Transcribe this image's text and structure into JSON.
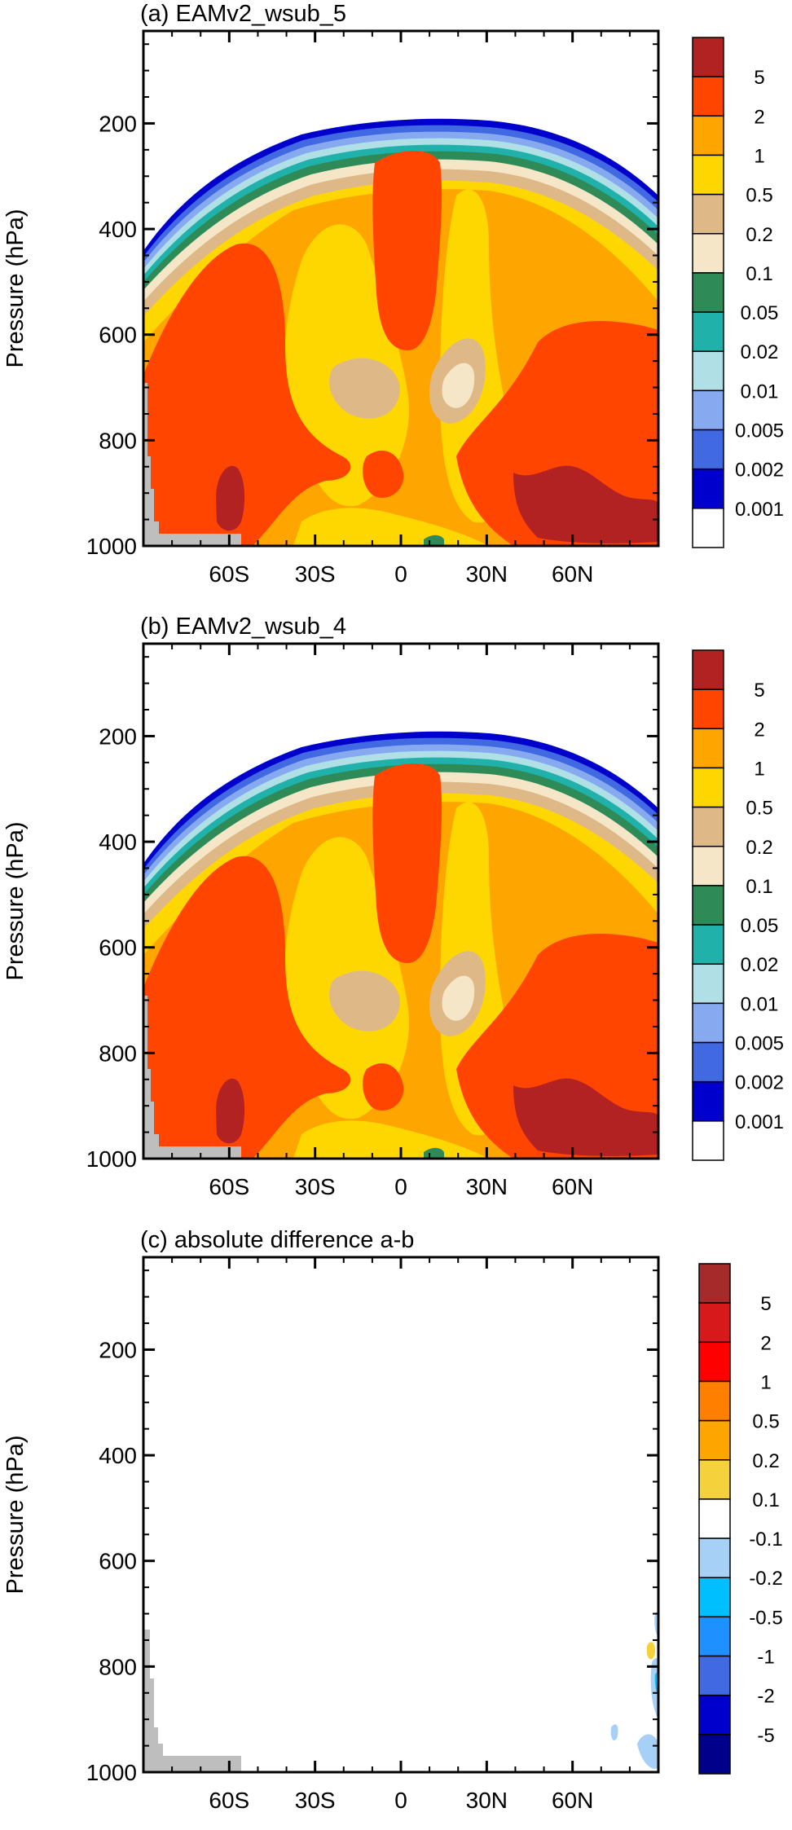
{
  "chart_data": [
    {
      "type": "heatmap",
      "title": "(a) EAMv2_wsub_5",
      "ylabel": "Pressure (hPa)",
      "xlabel": "",
      "x_ticks": [
        "60S",
        "30S",
        "0",
        "30N",
        "60N"
      ],
      "x_tick_values": [
        -60,
        -30,
        0,
        30,
        60
      ],
      "xlim": [
        -90,
        90
      ],
      "y_ticks": [
        "200",
        "400",
        "600",
        "800",
        "1000"
      ],
      "y_tick_values": [
        200,
        400,
        600,
        800,
        1000
      ],
      "ylim": [
        1000,
        25
      ],
      "colorbar": {
        "labels": [
          "5",
          "2",
          "1",
          "0.5",
          "0.2",
          "0.1",
          "0.05",
          "0.02",
          "0.01",
          "0.005",
          "0.002",
          "0.001"
        ],
        "colors": [
          "#b22222",
          "#ff4500",
          "#ffa500",
          "#ffd700",
          "#deb887",
          "#f5e6c8",
          "#2e8b57",
          "#20b2aa",
          "#b0e0e6",
          "#87a9f0",
          "#4169e1",
          "#0000cd",
          "#ffffff"
        ]
      },
      "land_mask_color": "#bebebe"
    },
    {
      "type": "heatmap",
      "title": "(b) EAMv2_wsub_4",
      "ylabel": "Pressure (hPa)",
      "xlabel": "",
      "x_ticks": [
        "60S",
        "30S",
        "0",
        "30N",
        "60N"
      ],
      "x_tick_values": [
        -60,
        -30,
        0,
        30,
        60
      ],
      "xlim": [
        -90,
        90
      ],
      "y_ticks": [
        "200",
        "400",
        "600",
        "800",
        "1000"
      ],
      "y_tick_values": [
        200,
        400,
        600,
        800,
        1000
      ],
      "ylim": [
        1000,
        25
      ],
      "colorbar": {
        "labels": [
          "5",
          "2",
          "1",
          "0.5",
          "0.2",
          "0.1",
          "0.05",
          "0.02",
          "0.01",
          "0.005",
          "0.002",
          "0.001"
        ],
        "colors": [
          "#b22222",
          "#ff4500",
          "#ffa500",
          "#ffd700",
          "#deb887",
          "#f5e6c8",
          "#2e8b57",
          "#20b2aa",
          "#b0e0e6",
          "#87a9f0",
          "#4169e1",
          "#0000cd",
          "#ffffff"
        ]
      },
      "land_mask_color": "#bebebe"
    },
    {
      "type": "heatmap",
      "title": "(c) absolute difference a-b",
      "ylabel": "Pressure (hPa)",
      "xlabel": "",
      "x_ticks": [
        "60S",
        "30S",
        "0",
        "30N",
        "60N"
      ],
      "x_tick_values": [
        -60,
        -30,
        0,
        30,
        60
      ],
      "xlim": [
        -90,
        90
      ],
      "y_ticks": [
        "200",
        "400",
        "600",
        "800",
        "1000"
      ],
      "y_tick_values": [
        200,
        400,
        600,
        800,
        1000
      ],
      "ylim": [
        1000,
        25
      ],
      "colorbar": {
        "labels": [
          "5",
          "2",
          "1",
          "0.5",
          "0.2",
          "0.1",
          "-0.1",
          "-0.2",
          "-0.5",
          "-1",
          "-2",
          "-5"
        ],
        "colors": [
          "#a52a2a",
          "#d7191c",
          "#ff0000",
          "#ff7f00",
          "#ffa500",
          "#f5d23c",
          "#ffffff",
          "#a6d0f5",
          "#00bfff",
          "#1e90ff",
          "#4169e1",
          "#0000cd",
          "#00008b"
        ]
      },
      "land_mask_color": "#bebebe"
    }
  ]
}
